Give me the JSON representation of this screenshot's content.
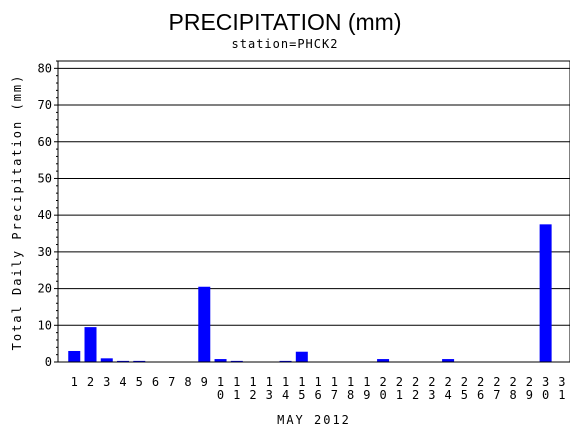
{
  "chart_data": {
    "type": "bar",
    "title": "PRECIPITATION (mm)",
    "subtitle": "station=PHCK2",
    "xlabel": "MAY 2012",
    "ylabel": "Total Daily Precipitation (mm)",
    "ylim": [
      0,
      82
    ],
    "yticks": [
      0,
      10,
      20,
      30,
      40,
      50,
      60,
      70,
      80
    ],
    "grid": true,
    "bar_color": "#0000ff",
    "categories": [
      "1",
      "2",
      "3",
      "4",
      "5",
      "6",
      "7",
      "8",
      "9",
      "10",
      "11",
      "12",
      "13",
      "14",
      "15",
      "16",
      "17",
      "18",
      "19",
      "20",
      "21",
      "22",
      "23",
      "24",
      "25",
      "26",
      "27",
      "28",
      "29",
      "30",
      "31"
    ],
    "values": [
      3.0,
      9.5,
      1.0,
      0.3,
      0.3,
      0,
      0,
      0,
      20.5,
      0.8,
      0.3,
      0,
      0,
      0.3,
      2.8,
      0,
      0,
      0,
      0,
      0.8,
      0,
      0,
      0,
      0.8,
      0,
      0,
      0,
      0,
      0,
      37.5,
      0
    ]
  }
}
